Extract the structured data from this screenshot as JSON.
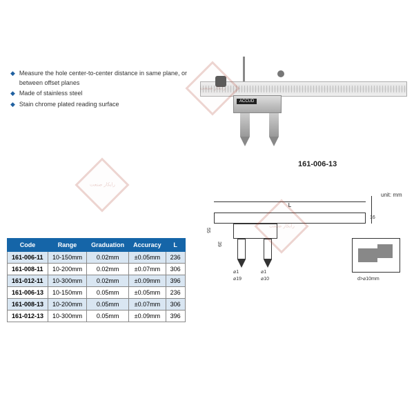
{
  "features": [
    "Measure the hole center-to-center distance in same plane, or between offset planes",
    "Made of stainless steel",
    "Stain chrome plated reading surface"
  ],
  "product": {
    "brand_label": "ACCUD",
    "model_shown": "161-006-13"
  },
  "drawing": {
    "unit_label": "unit: mm",
    "dim_L": "L",
    "dim_height_1": "55",
    "dim_height_2": "39",
    "dim_beam_h": "16",
    "dim_diam_1a": "⌀1",
    "dim_diam_1b": "⌀19",
    "dim_diam_2a": "⌀1",
    "dim_diam_2b": "⌀10",
    "inset_note": "d>⌀10mm"
  },
  "table": {
    "headers": [
      "Code",
      "Range",
      "Graduation",
      "Accuracy",
      "L"
    ],
    "rows": [
      {
        "code": "161-006-11",
        "range": "10-150mm",
        "grad": "0.02mm",
        "acc": "±0.05mm",
        "l": "236",
        "alt": true
      },
      {
        "code": "161-008-11",
        "range": "10-200mm",
        "grad": "0.02mm",
        "acc": "±0.07mm",
        "l": "306",
        "alt": false
      },
      {
        "code": "161-012-11",
        "range": "10-300mm",
        "grad": "0.02mm",
        "acc": "±0.09mm",
        "l": "396",
        "alt": true
      },
      {
        "code": "161-006-13",
        "range": "10-150mm",
        "grad": "0.05mm",
        "acc": "±0.05mm",
        "l": "236",
        "alt": false
      },
      {
        "code": "161-008-13",
        "range": "10-200mm",
        "grad": "0.05mm",
        "acc": "±0.07mm",
        "l": "306",
        "alt": true
      },
      {
        "code": "161-012-13",
        "range": "10-300mm",
        "grad": "0.05mm",
        "acc": "±0.09mm",
        "l": "396",
        "alt": false
      }
    ]
  },
  "colors": {
    "header_bg": "#1565a8",
    "alt_row_bg": "#d9e6f2",
    "border": "#888888",
    "watermark": "#b04030"
  },
  "watermark_text": "رابكار صنعت"
}
